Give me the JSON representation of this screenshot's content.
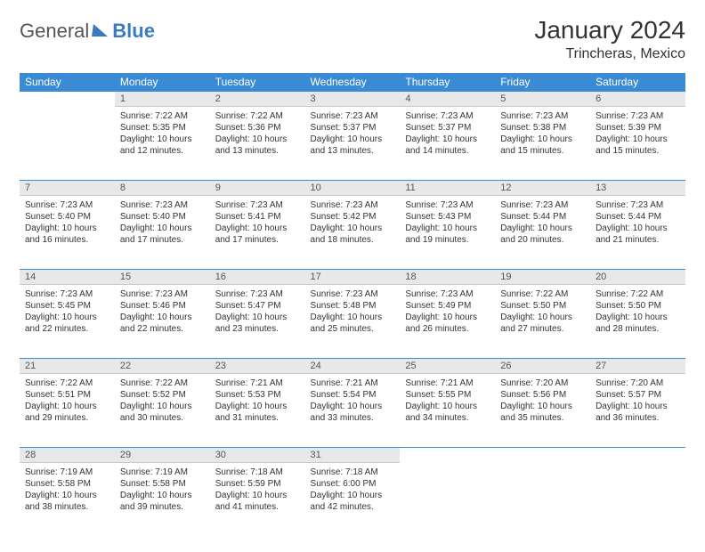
{
  "brand": {
    "part1": "General",
    "part2": "Blue"
  },
  "title": "January 2024",
  "subtitle": "Trincheras, Mexico",
  "header_color": "#3b8bd4",
  "daynum_bg": "#e8e8e8",
  "daynum_border": "#3b8bd4",
  "text_color": "#333333",
  "weekdays": [
    "Sunday",
    "Monday",
    "Tuesday",
    "Wednesday",
    "Thursday",
    "Friday",
    "Saturday"
  ],
  "weeks": [
    [
      {
        "day": "",
        "sunrise": "",
        "sunset": "",
        "daylight": ""
      },
      {
        "day": "1",
        "sunrise": "Sunrise: 7:22 AM",
        "sunset": "Sunset: 5:35 PM",
        "daylight": "Daylight: 10 hours and 12 minutes."
      },
      {
        "day": "2",
        "sunrise": "Sunrise: 7:22 AM",
        "sunset": "Sunset: 5:36 PM",
        "daylight": "Daylight: 10 hours and 13 minutes."
      },
      {
        "day": "3",
        "sunrise": "Sunrise: 7:23 AM",
        "sunset": "Sunset: 5:37 PM",
        "daylight": "Daylight: 10 hours and 13 minutes."
      },
      {
        "day": "4",
        "sunrise": "Sunrise: 7:23 AM",
        "sunset": "Sunset: 5:37 PM",
        "daylight": "Daylight: 10 hours and 14 minutes."
      },
      {
        "day": "5",
        "sunrise": "Sunrise: 7:23 AM",
        "sunset": "Sunset: 5:38 PM",
        "daylight": "Daylight: 10 hours and 15 minutes."
      },
      {
        "day": "6",
        "sunrise": "Sunrise: 7:23 AM",
        "sunset": "Sunset: 5:39 PM",
        "daylight": "Daylight: 10 hours and 15 minutes."
      }
    ],
    [
      {
        "day": "7",
        "sunrise": "Sunrise: 7:23 AM",
        "sunset": "Sunset: 5:40 PM",
        "daylight": "Daylight: 10 hours and 16 minutes."
      },
      {
        "day": "8",
        "sunrise": "Sunrise: 7:23 AM",
        "sunset": "Sunset: 5:40 PM",
        "daylight": "Daylight: 10 hours and 17 minutes."
      },
      {
        "day": "9",
        "sunrise": "Sunrise: 7:23 AM",
        "sunset": "Sunset: 5:41 PM",
        "daylight": "Daylight: 10 hours and 17 minutes."
      },
      {
        "day": "10",
        "sunrise": "Sunrise: 7:23 AM",
        "sunset": "Sunset: 5:42 PM",
        "daylight": "Daylight: 10 hours and 18 minutes."
      },
      {
        "day": "11",
        "sunrise": "Sunrise: 7:23 AM",
        "sunset": "Sunset: 5:43 PM",
        "daylight": "Daylight: 10 hours and 19 minutes."
      },
      {
        "day": "12",
        "sunrise": "Sunrise: 7:23 AM",
        "sunset": "Sunset: 5:44 PM",
        "daylight": "Daylight: 10 hours and 20 minutes."
      },
      {
        "day": "13",
        "sunrise": "Sunrise: 7:23 AM",
        "sunset": "Sunset: 5:44 PM",
        "daylight": "Daylight: 10 hours and 21 minutes."
      }
    ],
    [
      {
        "day": "14",
        "sunrise": "Sunrise: 7:23 AM",
        "sunset": "Sunset: 5:45 PM",
        "daylight": "Daylight: 10 hours and 22 minutes."
      },
      {
        "day": "15",
        "sunrise": "Sunrise: 7:23 AM",
        "sunset": "Sunset: 5:46 PM",
        "daylight": "Daylight: 10 hours and 22 minutes."
      },
      {
        "day": "16",
        "sunrise": "Sunrise: 7:23 AM",
        "sunset": "Sunset: 5:47 PM",
        "daylight": "Daylight: 10 hours and 23 minutes."
      },
      {
        "day": "17",
        "sunrise": "Sunrise: 7:23 AM",
        "sunset": "Sunset: 5:48 PM",
        "daylight": "Daylight: 10 hours and 25 minutes."
      },
      {
        "day": "18",
        "sunrise": "Sunrise: 7:23 AM",
        "sunset": "Sunset: 5:49 PM",
        "daylight": "Daylight: 10 hours and 26 minutes."
      },
      {
        "day": "19",
        "sunrise": "Sunrise: 7:22 AM",
        "sunset": "Sunset: 5:50 PM",
        "daylight": "Daylight: 10 hours and 27 minutes."
      },
      {
        "day": "20",
        "sunrise": "Sunrise: 7:22 AM",
        "sunset": "Sunset: 5:50 PM",
        "daylight": "Daylight: 10 hours and 28 minutes."
      }
    ],
    [
      {
        "day": "21",
        "sunrise": "Sunrise: 7:22 AM",
        "sunset": "Sunset: 5:51 PM",
        "daylight": "Daylight: 10 hours and 29 minutes."
      },
      {
        "day": "22",
        "sunrise": "Sunrise: 7:22 AM",
        "sunset": "Sunset: 5:52 PM",
        "daylight": "Daylight: 10 hours and 30 minutes."
      },
      {
        "day": "23",
        "sunrise": "Sunrise: 7:21 AM",
        "sunset": "Sunset: 5:53 PM",
        "daylight": "Daylight: 10 hours and 31 minutes."
      },
      {
        "day": "24",
        "sunrise": "Sunrise: 7:21 AM",
        "sunset": "Sunset: 5:54 PM",
        "daylight": "Daylight: 10 hours and 33 minutes."
      },
      {
        "day": "25",
        "sunrise": "Sunrise: 7:21 AM",
        "sunset": "Sunset: 5:55 PM",
        "daylight": "Daylight: 10 hours and 34 minutes."
      },
      {
        "day": "26",
        "sunrise": "Sunrise: 7:20 AM",
        "sunset": "Sunset: 5:56 PM",
        "daylight": "Daylight: 10 hours and 35 minutes."
      },
      {
        "day": "27",
        "sunrise": "Sunrise: 7:20 AM",
        "sunset": "Sunset: 5:57 PM",
        "daylight": "Daylight: 10 hours and 36 minutes."
      }
    ],
    [
      {
        "day": "28",
        "sunrise": "Sunrise: 7:19 AM",
        "sunset": "Sunset: 5:58 PM",
        "daylight": "Daylight: 10 hours and 38 minutes."
      },
      {
        "day": "29",
        "sunrise": "Sunrise: 7:19 AM",
        "sunset": "Sunset: 5:58 PM",
        "daylight": "Daylight: 10 hours and 39 minutes."
      },
      {
        "day": "30",
        "sunrise": "Sunrise: 7:18 AM",
        "sunset": "Sunset: 5:59 PM",
        "daylight": "Daylight: 10 hours and 41 minutes."
      },
      {
        "day": "31",
        "sunrise": "Sunrise: 7:18 AM",
        "sunset": "Sunset: 6:00 PM",
        "daylight": "Daylight: 10 hours and 42 minutes."
      },
      {
        "day": "",
        "sunrise": "",
        "sunset": "",
        "daylight": ""
      },
      {
        "day": "",
        "sunrise": "",
        "sunset": "",
        "daylight": ""
      },
      {
        "day": "",
        "sunrise": "",
        "sunset": "",
        "daylight": ""
      }
    ]
  ]
}
